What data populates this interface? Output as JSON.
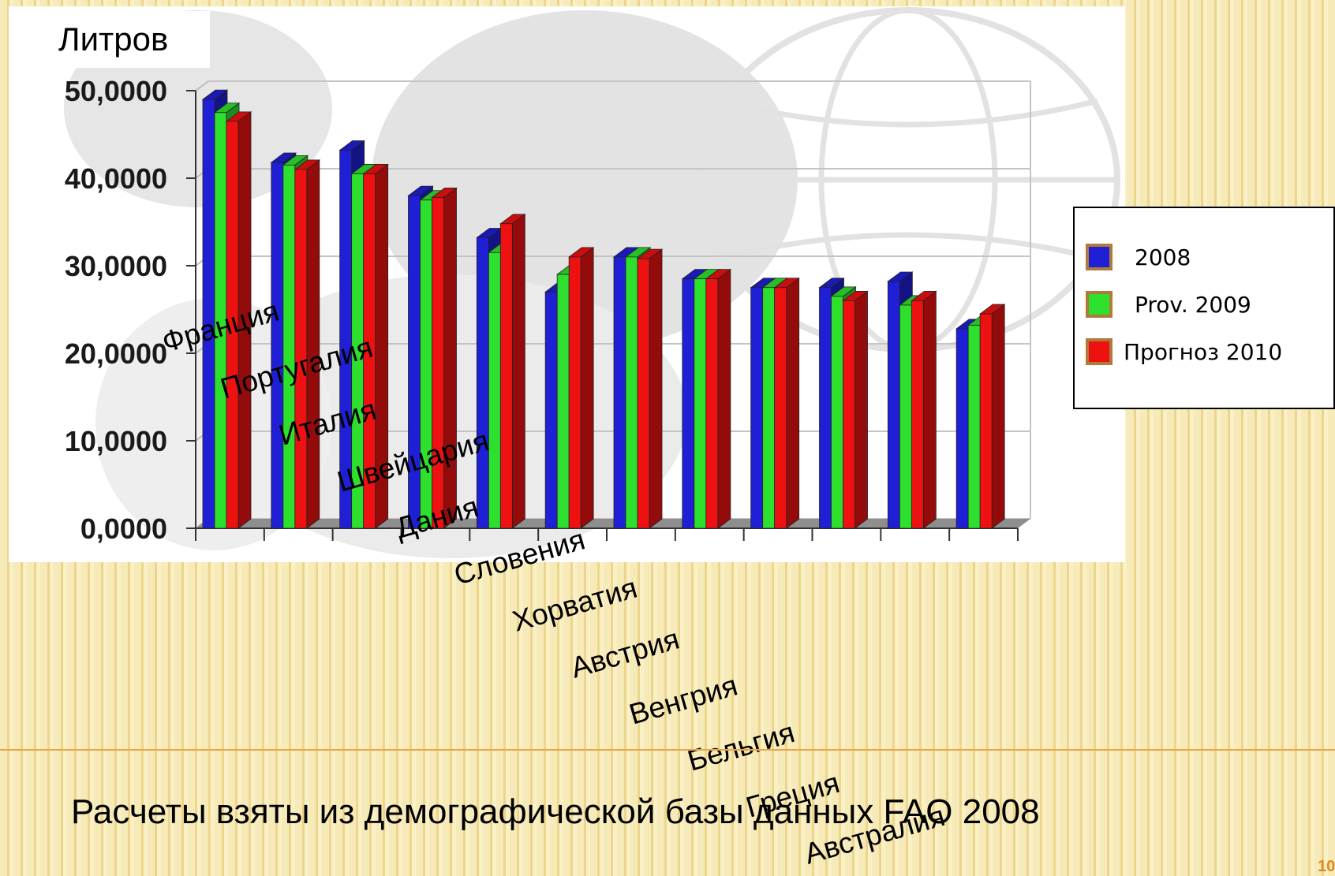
{
  "chart_data": {
    "type": "bar",
    "unit_label": "Литров",
    "categories": [
      "Франция",
      "Португалия",
      "Италия",
      "Швейцария",
      "Дания",
      "Словения",
      "Хорватия",
      "Австрия",
      "Венгрия",
      "Бельгия",
      "Греция",
      "Австралия"
    ],
    "series": [
      {
        "name": "2008",
        "color": "#1f1fd6",
        "values": [
          49.0,
          41.8,
          43.2,
          38.0,
          33.2,
          27.0,
          31.0,
          28.5,
          27.5,
          27.5,
          28.2,
          22.8
        ]
      },
      {
        "name": "Prov. 2009",
        "color": "#2ee02e",
        "values": [
          47.5,
          41.5,
          40.5,
          37.5,
          31.5,
          29.0,
          31.0,
          28.5,
          27.5,
          26.5,
          25.5,
          23.2
        ]
      },
      {
        "name": "Прогноз 2010",
        "color": "#ee1111",
        "values": [
          46.5,
          41.0,
          40.5,
          37.8,
          34.8,
          31.0,
          30.8,
          28.5,
          27.5,
          26.0,
          26.0,
          24.5
        ]
      }
    ],
    "y_ticks": [
      "0,0000",
      "10,0000",
      "20,0000",
      "30,0000",
      "40,0000",
      "50,0000"
    ],
    "ylim": [
      0,
      50
    ],
    "grid": true,
    "legend_position": "right"
  },
  "source_note": "Расчеты взяты из демографической базы данных FAO 2008",
  "page_number": "10",
  "colors": {
    "accent_line": "#e8a64a",
    "legend_border": "#b07a3a"
  }
}
